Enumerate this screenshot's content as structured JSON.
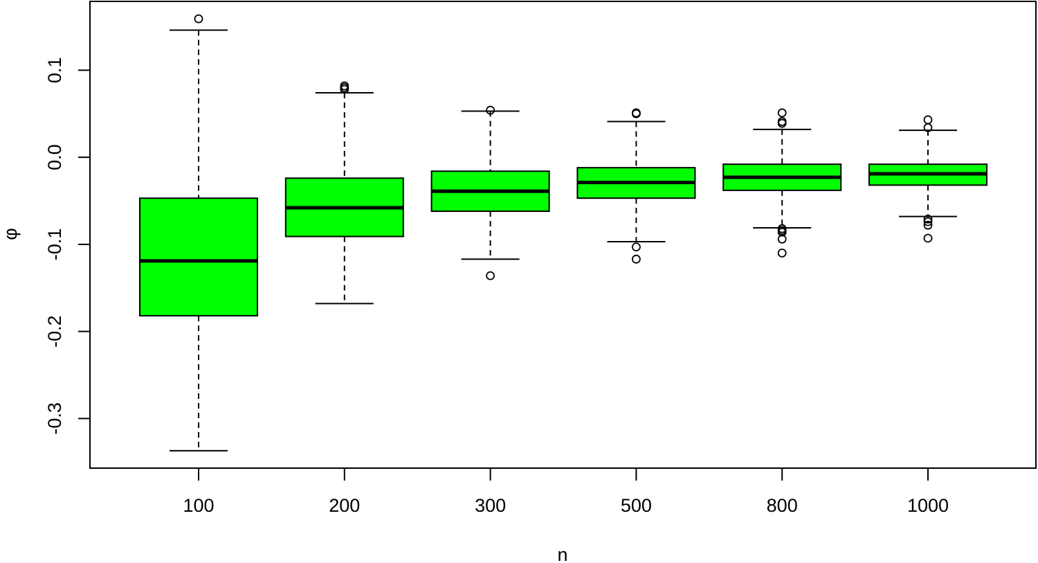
{
  "chart_data": {
    "type": "box",
    "title": "",
    "xlabel": "n",
    "ylabel": "φ",
    "ylim": [
      -0.357,
      0.179
    ],
    "yticks": [
      -0.3,
      -0.2,
      -0.1,
      0.0,
      0.1
    ],
    "ytick_labels": [
      "-0.3",
      "-0.2",
      "-0.1",
      "0.0",
      "0.1"
    ],
    "categories": [
      "100",
      "200",
      "300",
      "500",
      "800",
      "1000"
    ],
    "fill_color": "#00ff00",
    "grid": false,
    "legend": null,
    "boxes": [
      {
        "n": "100",
        "lower_whisker": -0.337,
        "q1": -0.182,
        "median": -0.119,
        "q3": -0.047,
        "upper_whisker": 0.146,
        "outliers": [
          0.159
        ]
      },
      {
        "n": "200",
        "lower_whisker": -0.168,
        "q1": -0.091,
        "median": -0.058,
        "q3": -0.024,
        "upper_whisker": 0.074,
        "outliers": [
          0.078,
          0.08,
          0.082
        ]
      },
      {
        "n": "300",
        "lower_whisker": -0.117,
        "q1": -0.062,
        "median": -0.039,
        "q3": -0.016,
        "upper_whisker": 0.053,
        "outliers": [
          0.054,
          -0.136
        ]
      },
      {
        "n": "500",
        "lower_whisker": -0.097,
        "q1": -0.047,
        "median": -0.029,
        "q3": -0.012,
        "upper_whisker": 0.041,
        "outliers": [
          0.05,
          0.051,
          -0.103,
          -0.117
        ]
      },
      {
        "n": "800",
        "lower_whisker": -0.081,
        "q1": -0.038,
        "median": -0.023,
        "q3": -0.008,
        "upper_whisker": 0.032,
        "outliers": [
          0.051,
          0.041,
          0.039,
          -0.082,
          -0.084,
          -0.086,
          -0.094,
          -0.11
        ]
      },
      {
        "n": "1000",
        "lower_whisker": -0.068,
        "q1": -0.032,
        "median": -0.019,
        "q3": -0.008,
        "upper_whisker": 0.031,
        "outliers": [
          0.043,
          0.034,
          -0.071,
          -0.074,
          -0.078,
          -0.093
        ]
      }
    ]
  }
}
